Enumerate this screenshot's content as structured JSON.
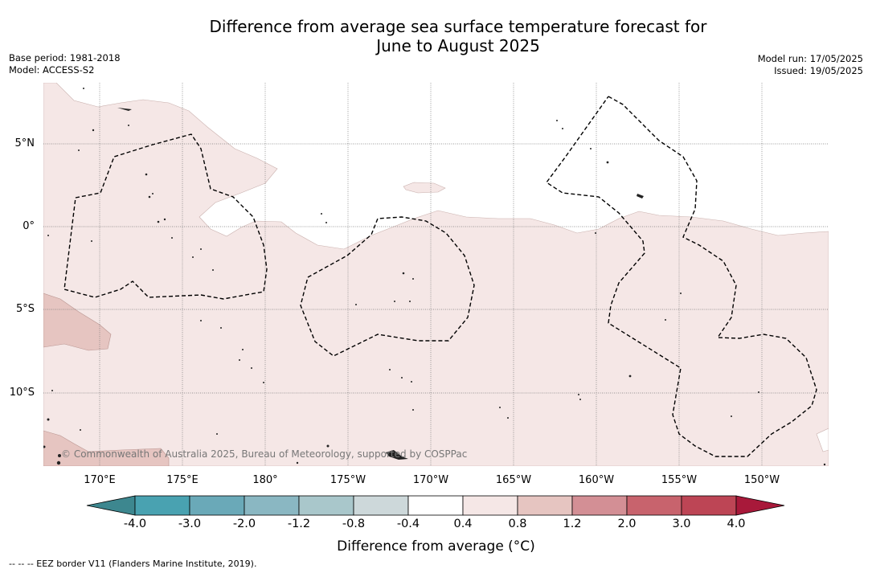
{
  "title_line1": "Difference from average sea surface temperature forecast for",
  "title_line2": "June to August 2025",
  "meta_left": {
    "base_period": "Base period: 1981-2018",
    "model": "Model: ACCESS-S2"
  },
  "meta_right": {
    "model_run": "Model run: 17/05/2025",
    "issued": "Issued: 19/05/2025"
  },
  "lat_labels": [
    "5°N",
    "0°",
    "5°S",
    "10°S"
  ],
  "lon_labels": [
    "170°E",
    "175°E",
    "180°",
    "175°W",
    "170°W",
    "165°W",
    "160°W",
    "155°W",
    "150°W"
  ],
  "credit": "© Commonwealth of Australia 2025, Bureau of Meteorology, supported by COSPPac",
  "colorbar": {
    "ticks": [
      "-4.0",
      "-3.0",
      "-2.0",
      "-1.2",
      "-0.8",
      "-0.4",
      "0.4",
      "0.8",
      "1.2",
      "2.0",
      "3.0",
      "4.0"
    ],
    "colors": [
      "#3d878f",
      "#49a2b1",
      "#6aa9b8",
      "#8ab7c2",
      "#a9c7cb",
      "#cdd8da",
      "#ffffff",
      "#f5e7e6",
      "#e6c5c1",
      "#d38f95",
      "#c8636d",
      "#bd4555",
      "#a8193a"
    ],
    "title": "Difference from average (°C)"
  },
  "footnote": "--  --  -- EEZ border V11 (Flanders Marine Institute, 2019).",
  "colors": {
    "warm_light": "#f5e7e6",
    "warm_mid": "#e6c5c1"
  }
}
